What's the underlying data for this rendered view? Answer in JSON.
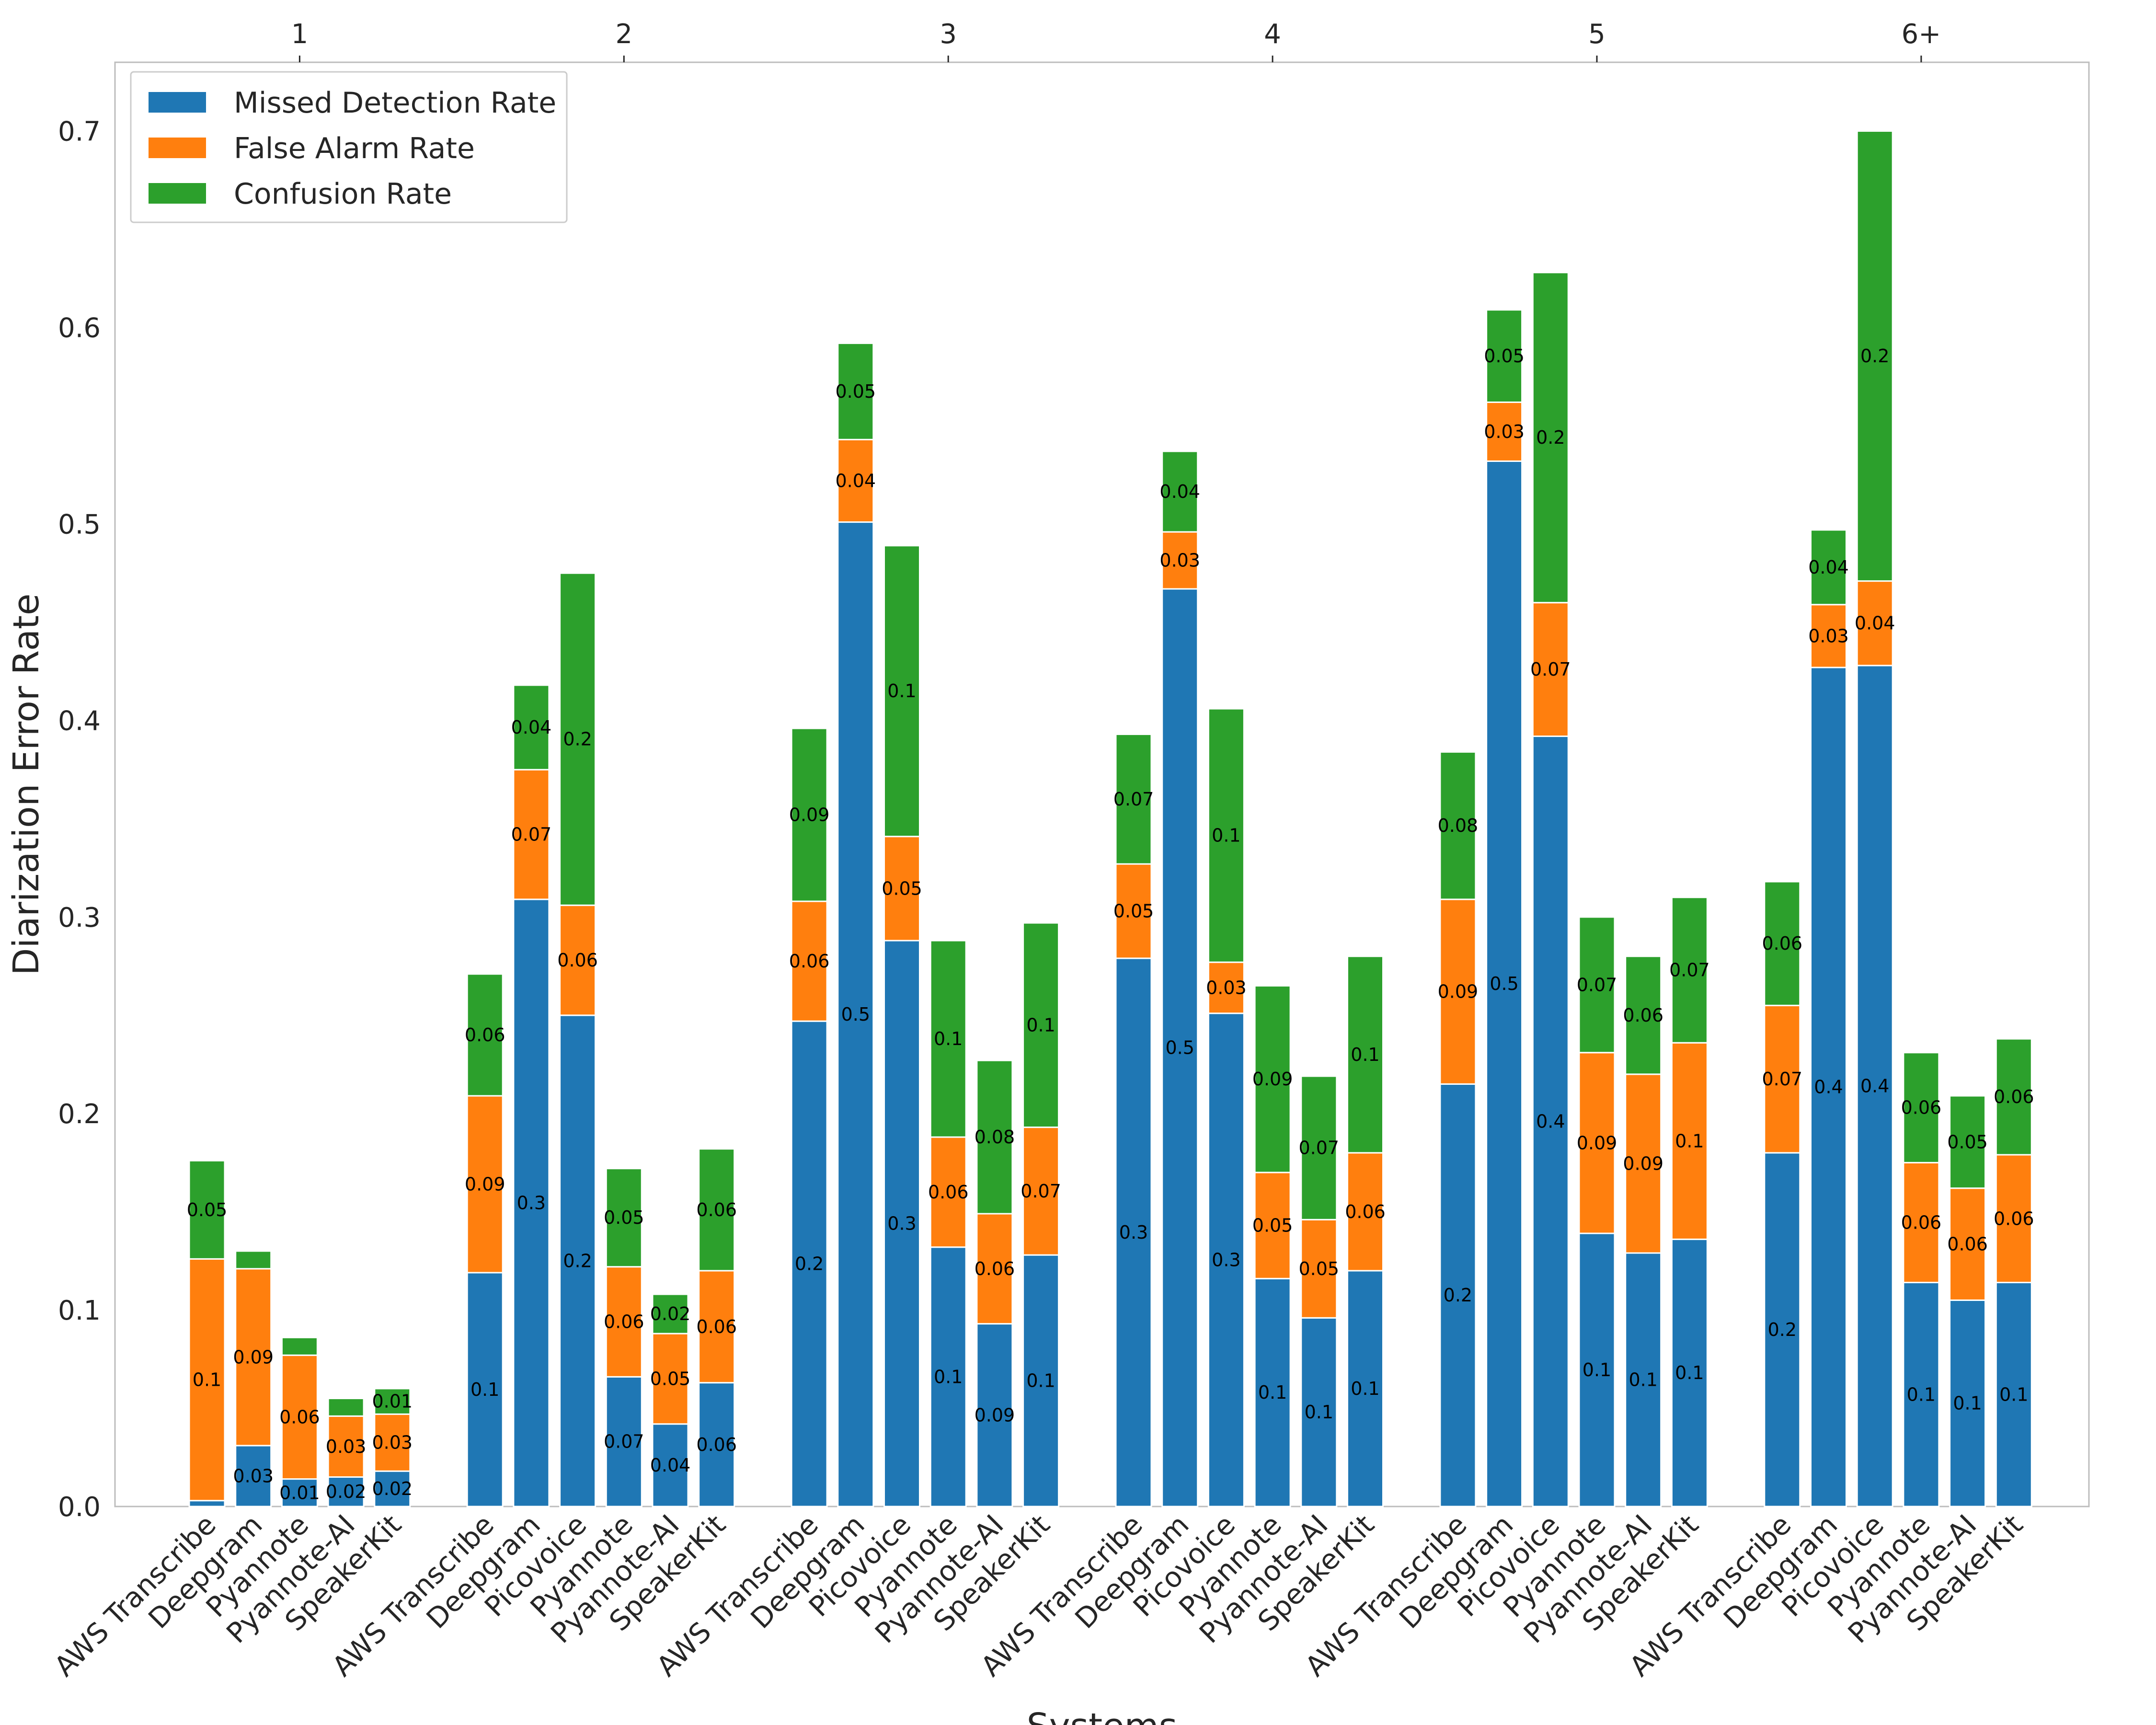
{
  "chart_data": {
    "type": "bar",
    "stacked": true,
    "ylabel": "Diarization Error Rate",
    "xlabel": "Systems",
    "ylim": [
      0,
      0.735
    ],
    "yticks": [
      "0.0",
      "0.1",
      "0.2",
      "0.3",
      "0.4",
      "0.5",
      "0.6",
      "0.7"
    ],
    "grid": false,
    "legend_position": "top-left",
    "legend": [
      "Missed Detection Rate",
      "False Alarm Rate",
      "Confusion Rate"
    ],
    "colors": [
      "#1f77b4",
      "#ff7f0e",
      "#2ca02c"
    ],
    "groups": [
      {
        "name": "1",
        "systems": [
          "AWS Transcribe",
          "Deepgram",
          "Pyannote",
          "Pyannote-AI",
          "SpeakerKit"
        ],
        "values": [
          [
            0.003,
            0.123,
            0.05
          ],
          [
            0.031,
            0.09,
            0.009
          ],
          [
            0.014,
            0.063,
            0.009
          ],
          [
            0.015,
            0.031,
            0.009
          ],
          [
            0.018,
            0.029,
            0.013
          ]
        ],
        "labels": [
          [
            "",
            "0.1",
            "0.05"
          ],
          [
            "0.03",
            "0.09",
            ""
          ],
          [
            "0.01",
            "0.06",
            ""
          ],
          [
            "0.02",
            "0.03",
            ""
          ],
          [
            "0.02",
            "0.03",
            "0.01"
          ]
        ]
      },
      {
        "name": "2",
        "systems": [
          "AWS Transcribe",
          "Deepgram",
          "Picovoice",
          "Pyannote",
          "Pyannote-AI",
          "SpeakerKit"
        ],
        "values": [
          [
            0.119,
            0.09,
            0.062
          ],
          [
            0.309,
            0.066,
            0.043
          ],
          [
            0.25,
            0.056,
            0.169
          ],
          [
            0.066,
            0.056,
            0.05
          ],
          [
            0.042,
            0.046,
            0.02
          ],
          [
            0.063,
            0.057,
            0.062
          ]
        ],
        "labels": [
          [
            "0.1",
            "0.09",
            "0.06"
          ],
          [
            "0.3",
            "0.07",
            "0.04"
          ],
          [
            "0.2",
            "0.06",
            "0.2"
          ],
          [
            "0.07",
            "0.06",
            "0.05"
          ],
          [
            "0.04",
            "0.05",
            "0.02"
          ],
          [
            "0.06",
            "0.06",
            "0.06"
          ]
        ]
      },
      {
        "name": "3",
        "systems": [
          "AWS Transcribe",
          "Deepgram",
          "Picovoice",
          "Pyannote",
          "Pyannote-AI",
          "SpeakerKit"
        ],
        "values": [
          [
            0.247,
            0.061,
            0.088
          ],
          [
            0.501,
            0.042,
            0.049
          ],
          [
            0.288,
            0.053,
            0.148
          ],
          [
            0.132,
            0.056,
            0.1
          ],
          [
            0.093,
            0.056,
            0.078
          ],
          [
            0.128,
            0.065,
            0.104
          ]
        ],
        "labels": [
          [
            "0.2",
            "0.06",
            "0.09"
          ],
          [
            "0.5",
            "0.04",
            "0.05"
          ],
          [
            "0.3",
            "0.05",
            "0.1"
          ],
          [
            "0.1",
            "0.06",
            "0.1"
          ],
          [
            "0.09",
            "0.06",
            "0.08"
          ],
          [
            "0.1",
            "0.07",
            "0.1"
          ]
        ]
      },
      {
        "name": "4",
        "systems": [
          "AWS Transcribe",
          "Deepgram",
          "Picovoice",
          "Pyannote",
          "Pyannote-AI",
          "SpeakerKit"
        ],
        "values": [
          [
            0.279,
            0.048,
            0.066
          ],
          [
            0.467,
            0.029,
            0.041
          ],
          [
            0.251,
            0.026,
            0.129
          ],
          [
            0.116,
            0.054,
            0.095
          ],
          [
            0.096,
            0.05,
            0.073
          ],
          [
            0.12,
            0.06,
            0.1
          ]
        ],
        "labels": [
          [
            "0.3",
            "0.05",
            "0.07"
          ],
          [
            "0.5",
            "0.03",
            "0.04"
          ],
          [
            "0.3",
            "0.03",
            "0.1"
          ],
          [
            "0.1",
            "0.05",
            "0.09"
          ],
          [
            "0.1",
            "0.05",
            "0.07"
          ],
          [
            "0.1",
            "0.06",
            "0.1"
          ]
        ]
      },
      {
        "name": "5",
        "systems": [
          "AWS Transcribe",
          "Deepgram",
          "Picovoice",
          "Pyannote",
          "Pyannote-AI",
          "SpeakerKit"
        ],
        "values": [
          [
            0.215,
            0.094,
            0.075
          ],
          [
            0.532,
            0.03,
            0.047
          ],
          [
            0.392,
            0.068,
            0.168
          ],
          [
            0.139,
            0.092,
            0.069
          ],
          [
            0.129,
            0.091,
            0.06
          ],
          [
            0.136,
            0.1,
            0.074
          ]
        ],
        "labels": [
          [
            "0.2",
            "0.09",
            "0.08"
          ],
          [
            "0.5",
            "0.03",
            "0.05"
          ],
          [
            "0.4",
            "0.07",
            "0.2"
          ],
          [
            "0.1",
            "0.09",
            "0.07"
          ],
          [
            "0.1",
            "0.09",
            "0.06"
          ],
          [
            "0.1",
            "0.1",
            "0.07"
          ]
        ]
      },
      {
        "name": "6+",
        "systems": [
          "AWS Transcribe",
          "Deepgram",
          "Picovoice",
          "Pyannote",
          "Pyannote-AI",
          "SpeakerKit"
        ],
        "values": [
          [
            0.18,
            0.075,
            0.063
          ],
          [
            0.427,
            0.032,
            0.038
          ],
          [
            0.428,
            0.043,
            0.229
          ],
          [
            0.114,
            0.061,
            0.056
          ],
          [
            0.105,
            0.057,
            0.047
          ],
          [
            0.114,
            0.065,
            0.059
          ]
        ],
        "labels": [
          [
            "0.2",
            "0.07",
            "0.06"
          ],
          [
            "0.4",
            "0.03",
            "0.04"
          ],
          [
            "0.4",
            "0.04",
            "0.2"
          ],
          [
            "0.1",
            "0.06",
            "0.06"
          ],
          [
            "0.1",
            "0.06",
            "0.05"
          ],
          [
            "0.1",
            "0.06",
            "0.06"
          ]
        ]
      }
    ]
  }
}
